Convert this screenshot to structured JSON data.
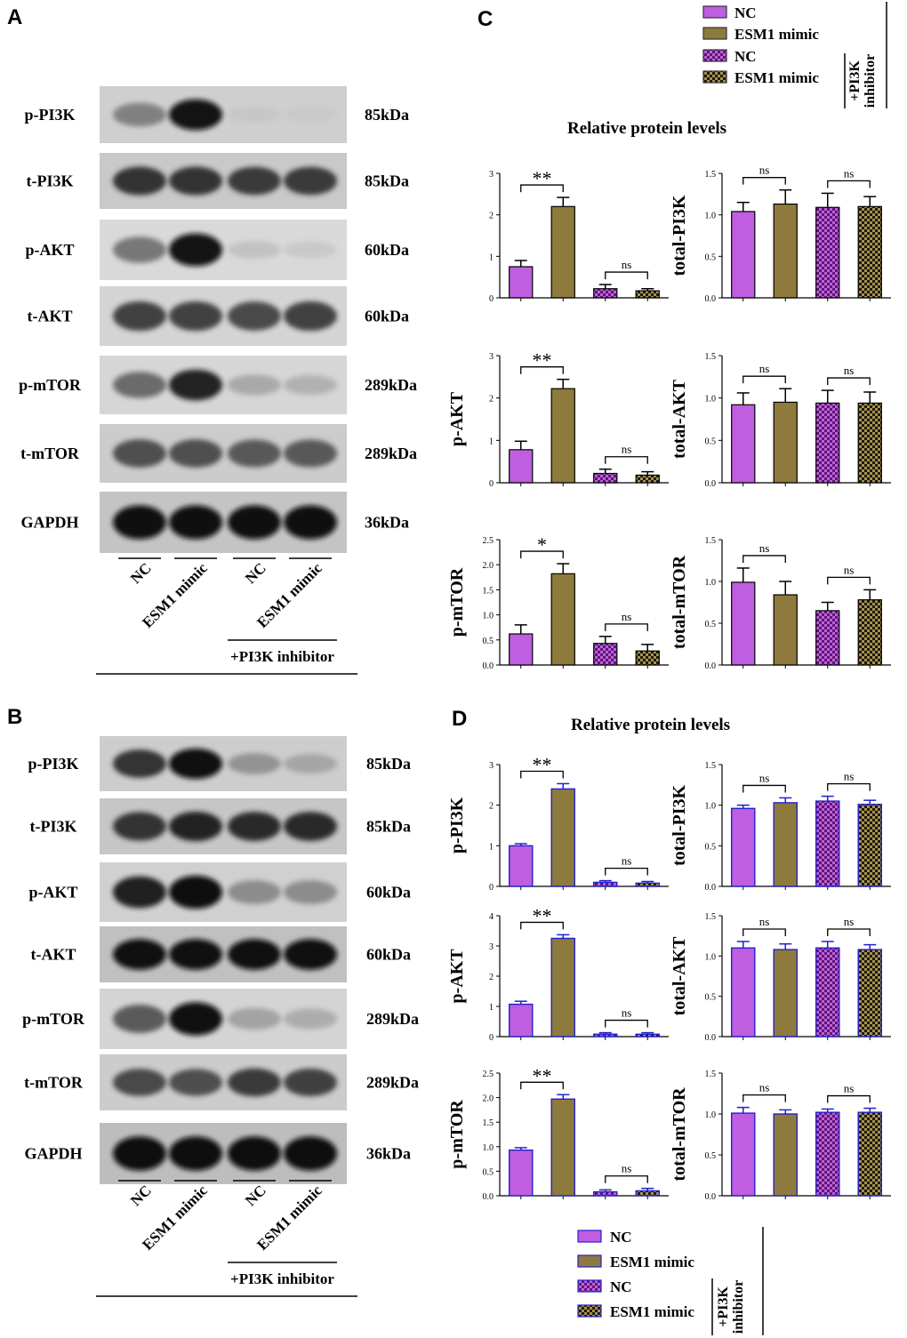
{
  "figure": {
    "panels": {
      "a": "A",
      "b": "B",
      "c": "C",
      "d": "D"
    },
    "colors": {
      "nc": "#bf5ee0",
      "esm1": "#8e7a3c",
      "nc_check_a": "#bf5ee0",
      "nc_check_b": "#5c1a6e",
      "esm1_check_a": "#a8914c",
      "esm1_check_b": "#1e1a10",
      "d_border": "#2222cc"
    }
  },
  "blots": {
    "A": {
      "rows": [
        {
          "label": "p-PI3K",
          "kda": "85kDa",
          "intensity": [
            0.55,
            0.95,
            0.08,
            0.06
          ],
          "bg": "#cfcfcf"
        },
        {
          "label": "t-PI3K",
          "kda": "85kDa",
          "intensity": [
            0.85,
            0.85,
            0.82,
            0.82
          ],
          "bg": "#c9c9c9"
        },
        {
          "label": "p-AKT",
          "kda": "60kDa",
          "intensity": [
            0.6,
            0.95,
            0.18,
            0.12
          ],
          "bg": "#d9d9d9"
        },
        {
          "label": "t-AKT",
          "kda": "60kDa",
          "intensity": [
            0.8,
            0.8,
            0.78,
            0.8
          ],
          "bg": "#d4d4d4"
        },
        {
          "label": "p-mTOR",
          "kda": "289kDa",
          "intensity": [
            0.65,
            0.9,
            0.35,
            0.3
          ],
          "bg": "#d6d6d6"
        },
        {
          "label": "t-mTOR",
          "kda": "289kDa",
          "intensity": [
            0.75,
            0.75,
            0.72,
            0.72
          ],
          "bg": "#cccccc"
        },
        {
          "label": "GAPDH",
          "kda": "36kDa",
          "intensity": [
            0.98,
            0.98,
            0.98,
            0.98
          ],
          "bg": "#c4c4c4"
        }
      ],
      "lanes": [
        "NC",
        "ESM1 mimic",
        "NC",
        "ESM1 mimic"
      ],
      "treatment": "+PI3K inhibitor"
    },
    "B": {
      "rows": [
        {
          "label": "p-PI3K",
          "kda": "85kDa",
          "intensity": [
            0.85,
            0.98,
            0.45,
            0.35
          ],
          "bg": "#cdcdcd"
        },
        {
          "label": "t-PI3K",
          "kda": "85kDa",
          "intensity": [
            0.85,
            0.9,
            0.88,
            0.88
          ],
          "bg": "#c6c6c6"
        },
        {
          "label": "p-AKT",
          "kda": "60kDa",
          "intensity": [
            0.92,
            0.99,
            0.5,
            0.5
          ],
          "bg": "#d0d0d0"
        },
        {
          "label": "t-AKT",
          "kda": "60kDa",
          "intensity": [
            0.97,
            0.97,
            0.97,
            0.97
          ],
          "bg": "#c0c0c0"
        },
        {
          "label": "p-mTOR",
          "kda": "289kDa",
          "intensity": [
            0.72,
            0.97,
            0.38,
            0.32
          ],
          "bg": "#d4d4d4"
        },
        {
          "label": "t-mTOR",
          "kda": "289kDa",
          "intensity": [
            0.78,
            0.76,
            0.82,
            0.8
          ],
          "bg": "#cccccc"
        },
        {
          "label": "GAPDH",
          "kda": "36kDa",
          "intensity": [
            0.99,
            0.99,
            0.99,
            0.99
          ],
          "bg": "#bdbdbd"
        }
      ],
      "lanes": [
        "NC",
        "ESM1 mimic",
        "NC",
        "ESM1 mimic"
      ],
      "treatment": "+PI3K inhibitor"
    }
  },
  "legend_c": {
    "items": [
      "NC",
      "ESM1 mimic",
      "NC",
      "ESM1 mimic"
    ],
    "bracket_label": "+PI3K inhibitor"
  },
  "legend_d": {
    "items": [
      "NC",
      "ESM1 mimic",
      "NC",
      "ESM1 mimic"
    ],
    "bracket_label": "+PI3K inhibitor"
  },
  "chart_c_title": "Relative protein levels",
  "chart_d_title": "Relative protein levels",
  "chart_data": [
    {
      "type": "bar",
      "panel": "C",
      "ylabel": "",
      "ylim": [
        0,
        3
      ],
      "yticks": [
        "0",
        "1",
        "2",
        "3"
      ],
      "values": [
        0.75,
        2.2,
        0.22,
        0.17
      ],
      "errors": [
        0.15,
        0.22,
        0.1,
        0.05
      ],
      "sig": [
        {
          "pair": [
            0,
            1
          ],
          "label": "**"
        },
        {
          "pair": [
            2,
            3
          ],
          "label": "ns"
        }
      ]
    },
    {
      "type": "bar",
      "panel": "C",
      "ylabel": "total-PI3K",
      "ylim": [
        0,
        1.5
      ],
      "yticks": [
        "0.0",
        "0.5",
        "1.0",
        "1.5"
      ],
      "values": [
        1.04,
        1.13,
        1.09,
        1.1
      ],
      "errors": [
        0.11,
        0.17,
        0.17,
        0.12
      ],
      "sig": [
        {
          "pair": [
            0,
            1
          ],
          "label": "ns"
        },
        {
          "pair": [
            2,
            3
          ],
          "label": "ns"
        }
      ]
    },
    {
      "type": "bar",
      "panel": "C",
      "ylabel": "p-AKT",
      "ylim": [
        0,
        3
      ],
      "yticks": [
        "0",
        "1",
        "2",
        "3"
      ],
      "values": [
        0.78,
        2.22,
        0.22,
        0.18
      ],
      "errors": [
        0.2,
        0.22,
        0.1,
        0.08
      ],
      "sig": [
        {
          "pair": [
            0,
            1
          ],
          "label": "**"
        },
        {
          "pair": [
            2,
            3
          ],
          "label": "ns"
        }
      ]
    },
    {
      "type": "bar",
      "panel": "C",
      "ylabel": "total-AKT",
      "ylim": [
        0,
        1.5
      ],
      "yticks": [
        "0.0",
        "0.5",
        "1.0",
        "1.5"
      ],
      "values": [
        0.92,
        0.95,
        0.94,
        0.94
      ],
      "errors": [
        0.14,
        0.16,
        0.15,
        0.13
      ],
      "sig": [
        {
          "pair": [
            0,
            1
          ],
          "label": "ns"
        },
        {
          "pair": [
            2,
            3
          ],
          "label": "ns"
        }
      ]
    },
    {
      "type": "bar",
      "panel": "C",
      "ylabel": "p-mTOR",
      "ylim": [
        0,
        2.5
      ],
      "yticks": [
        "0.0",
        "0.5",
        "1.0",
        "1.5",
        "2.0",
        "2.5"
      ],
      "values": [
        0.62,
        1.82,
        0.43,
        0.28
      ],
      "errors": [
        0.18,
        0.2,
        0.14,
        0.13
      ],
      "sig": [
        {
          "pair": [
            0,
            1
          ],
          "label": "*"
        },
        {
          "pair": [
            2,
            3
          ],
          "label": "ns"
        }
      ]
    },
    {
      "type": "bar",
      "panel": "C",
      "ylabel": "total-mTOR",
      "ylim": [
        0,
        1.5
      ],
      "yticks": [
        "0.0",
        "0.5",
        "1.0",
        "1.5"
      ],
      "values": [
        0.99,
        0.84,
        0.65,
        0.78
      ],
      "errors": [
        0.17,
        0.16,
        0.1,
        0.12
      ],
      "sig": [
        {
          "pair": [
            0,
            1
          ],
          "label": "ns"
        },
        {
          "pair": [
            2,
            3
          ],
          "label": "ns"
        }
      ]
    },
    {
      "type": "bar",
      "panel": "D",
      "ylabel": "p-PI3K",
      "ylim": [
        0,
        3
      ],
      "yticks": [
        "0",
        "1",
        "2",
        "3"
      ],
      "values": [
        1.0,
        2.4,
        0.1,
        0.08
      ],
      "errors": [
        0.05,
        0.13,
        0.04,
        0.04
      ],
      "sig": [
        {
          "pair": [
            0,
            1
          ],
          "label": "**"
        },
        {
          "pair": [
            2,
            3
          ],
          "label": "ns"
        }
      ]
    },
    {
      "type": "bar",
      "panel": "D",
      "ylabel": "total-PI3K",
      "ylim": [
        0,
        1.5
      ],
      "yticks": [
        "0.0",
        "0.5",
        "1.0",
        "1.5"
      ],
      "values": [
        0.96,
        1.03,
        1.05,
        1.01
      ],
      "errors": [
        0.04,
        0.06,
        0.06,
        0.05
      ],
      "sig": [
        {
          "pair": [
            0,
            1
          ],
          "label": "ns"
        },
        {
          "pair": [
            2,
            3
          ],
          "label": "ns"
        }
      ]
    },
    {
      "type": "bar",
      "panel": "D",
      "ylabel": "p-AKT",
      "ylim": [
        0,
        4
      ],
      "yticks": [
        "0",
        "1",
        "2",
        "3",
        "4"
      ],
      "values": [
        1.07,
        3.25,
        0.08,
        0.08
      ],
      "errors": [
        0.1,
        0.12,
        0.05,
        0.05
      ],
      "sig": [
        {
          "pair": [
            0,
            1
          ],
          "label": "**"
        },
        {
          "pair": [
            2,
            3
          ],
          "label": "ns"
        }
      ]
    },
    {
      "type": "bar",
      "panel": "D",
      "ylabel": "total-AKT",
      "ylim": [
        0,
        1.5
      ],
      "yticks": [
        "0.0",
        "0.5",
        "1.0",
        "1.5"
      ],
      "values": [
        1.1,
        1.08,
        1.1,
        1.08
      ],
      "errors": [
        0.08,
        0.07,
        0.08,
        0.06
      ],
      "sig": [
        {
          "pair": [
            0,
            1
          ],
          "label": "ns"
        },
        {
          "pair": [
            2,
            3
          ],
          "label": "ns"
        }
      ]
    },
    {
      "type": "bar",
      "panel": "D",
      "ylabel": "p-mTOR",
      "ylim": [
        0,
        2.5
      ],
      "yticks": [
        "0.0",
        "0.5",
        "1.0",
        "1.5",
        "2.0",
        "2.5"
      ],
      "values": [
        0.93,
        1.97,
        0.08,
        0.1
      ],
      "errors": [
        0.05,
        0.09,
        0.04,
        0.05
      ],
      "sig": [
        {
          "pair": [
            0,
            1
          ],
          "label": "**"
        },
        {
          "pair": [
            2,
            3
          ],
          "label": "ns"
        }
      ]
    },
    {
      "type": "bar",
      "panel": "D",
      "ylabel": "total-mTOR",
      "ylim": [
        0,
        1.5
      ],
      "yticks": [
        "0.0",
        "0.5",
        "1.0",
        "1.5"
      ],
      "values": [
        1.01,
        1.0,
        1.02,
        1.02
      ],
      "errors": [
        0.07,
        0.05,
        0.04,
        0.05
      ],
      "sig": [
        {
          "pair": [
            0,
            1
          ],
          "label": "ns"
        },
        {
          "pair": [
            2,
            3
          ],
          "label": "ns"
        }
      ]
    }
  ]
}
